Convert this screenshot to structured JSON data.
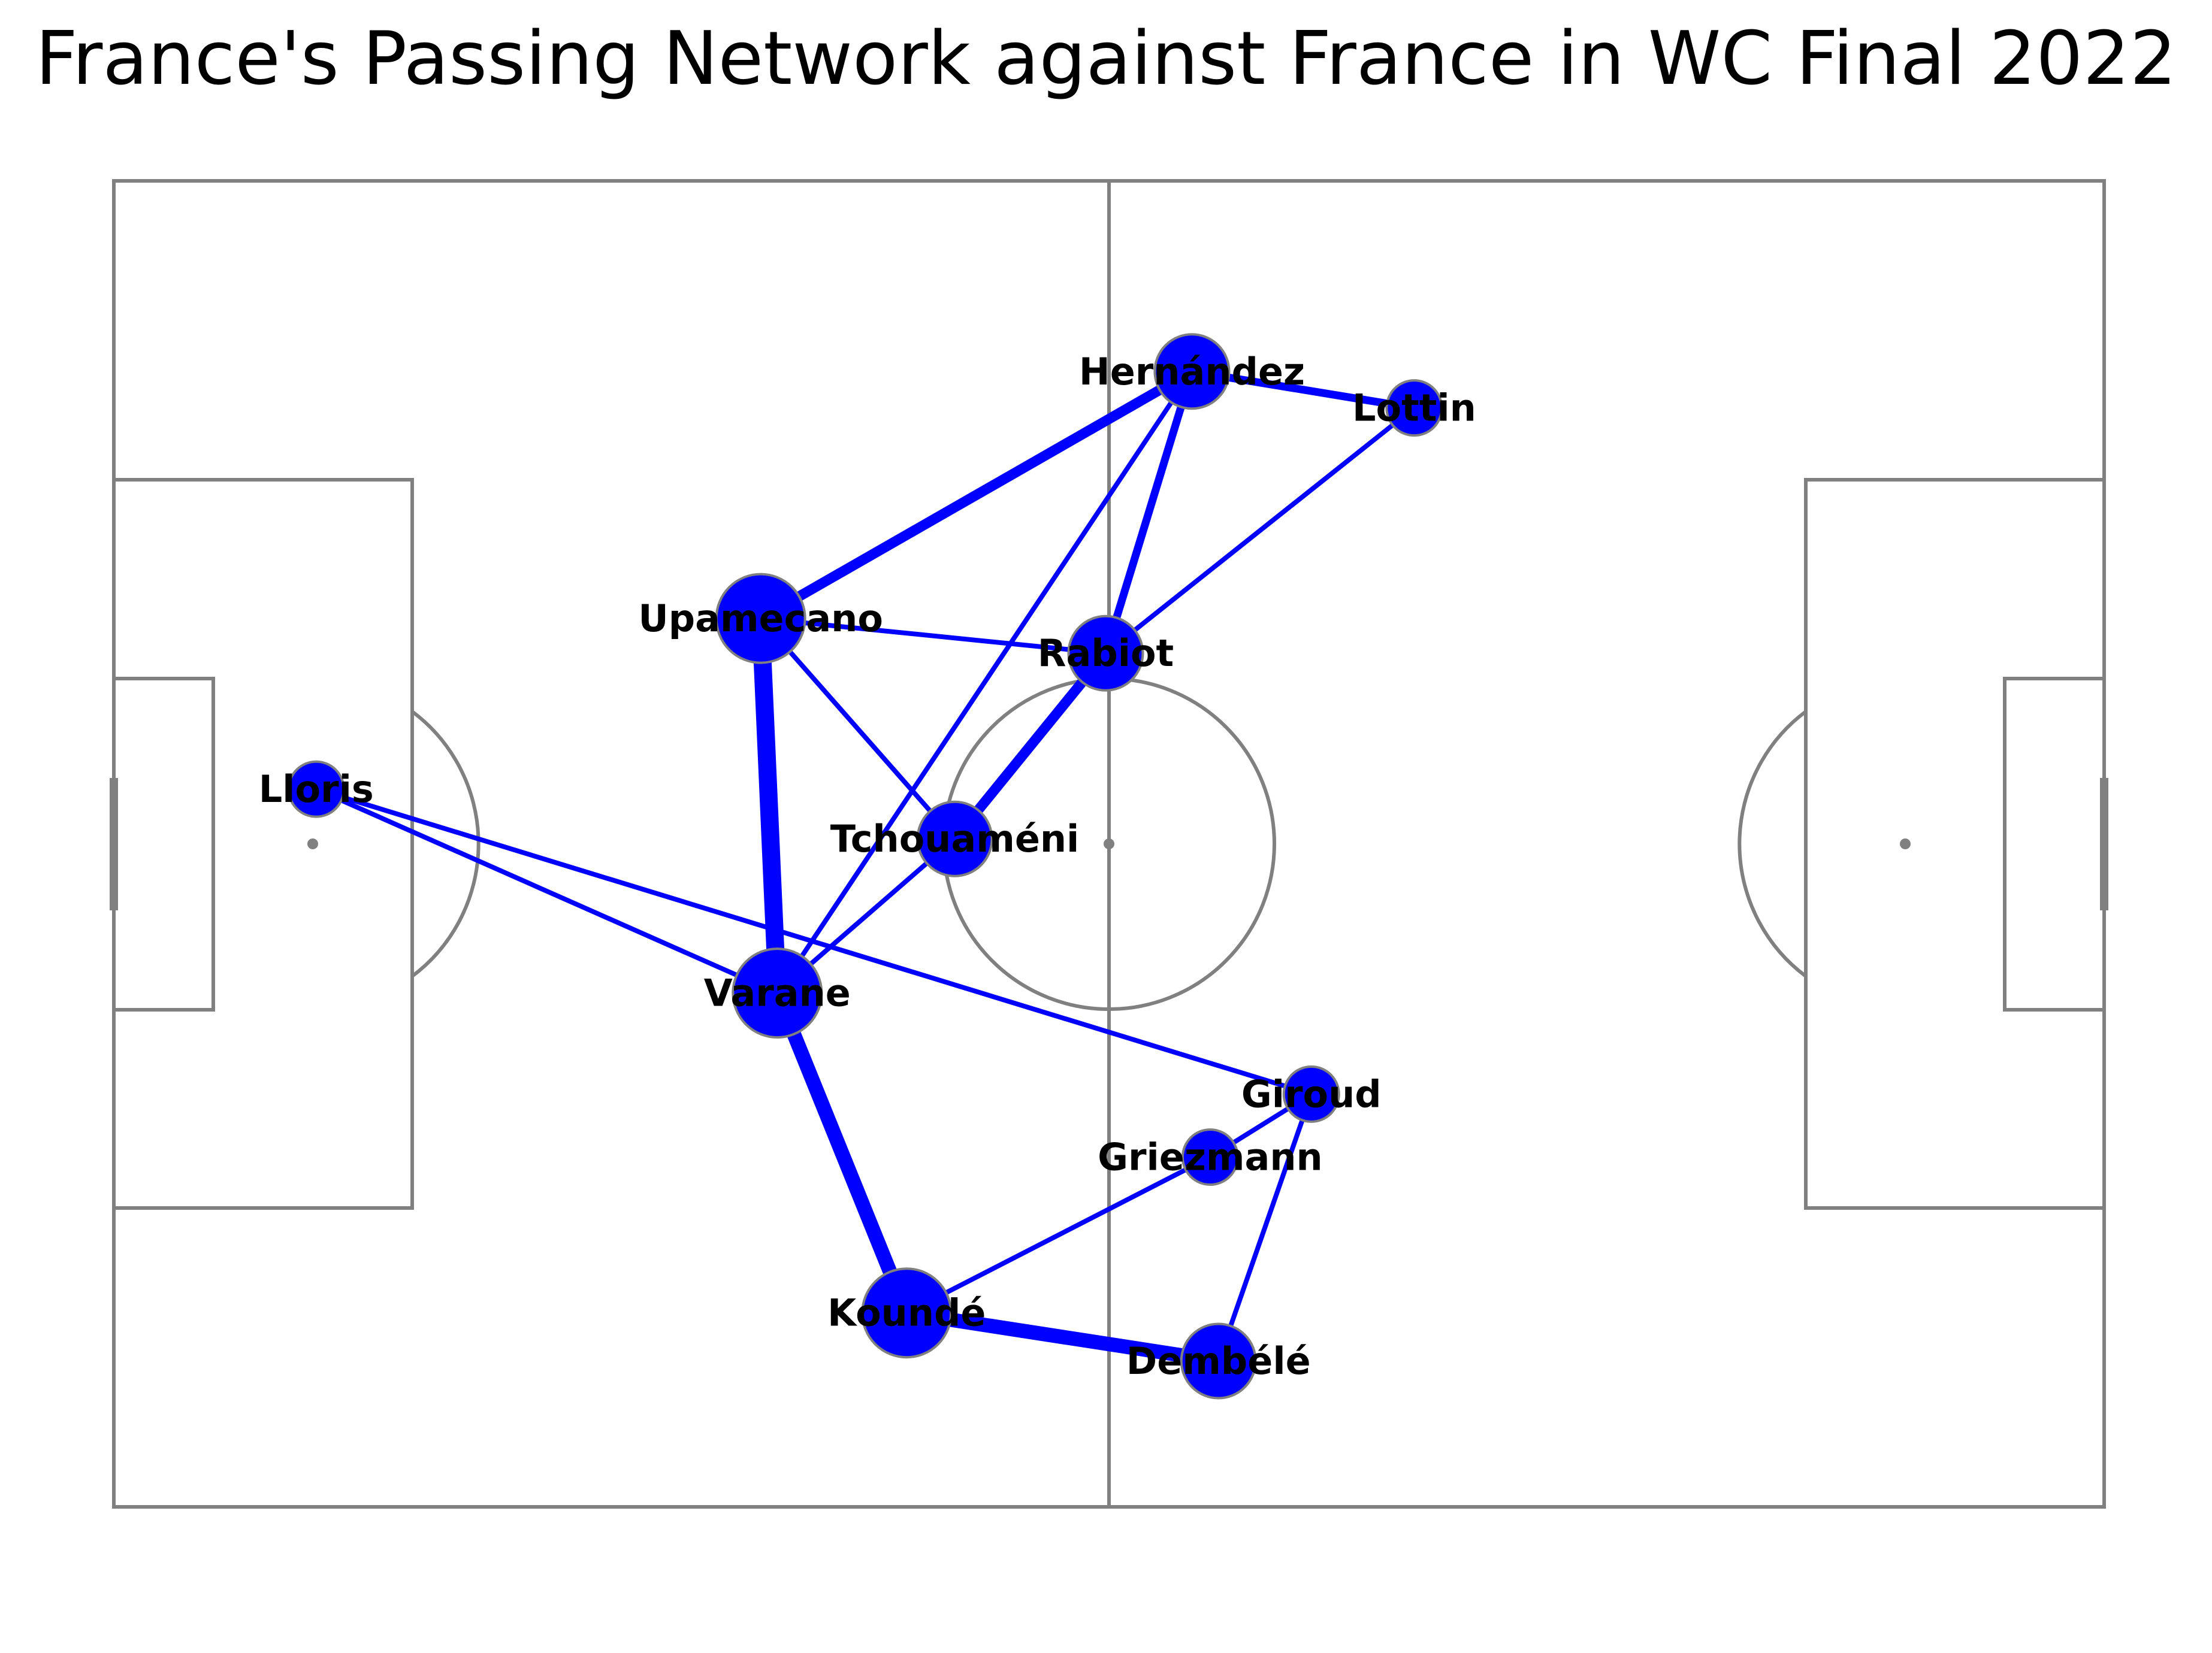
{
  "title": "France's Passing Network against France in WC Final 2022",
  "colors": {
    "background": "#ffffff",
    "pitch_lines": "#808080",
    "network": "#0000ff",
    "label": "#000000"
  },
  "diagram": {
    "type": "passing-network",
    "pitch": {
      "length": 120,
      "width": 80,
      "orientation": "horizontal"
    },
    "nodes": [
      {
        "id": "lloris",
        "label": "Lloris",
        "x": 12.2,
        "y": 36.7,
        "size": 1
      },
      {
        "id": "upamecano",
        "label": "Upamecano",
        "x": 39.0,
        "y": 26.4,
        "size": 3
      },
      {
        "id": "varane",
        "label": "Varane",
        "x": 40.0,
        "y": 49.0,
        "size": 3
      },
      {
        "id": "tchouameni",
        "label": "Tchouaméni",
        "x": 50.7,
        "y": 39.7,
        "size": 2
      },
      {
        "id": "rabiot",
        "label": "Rabiot",
        "x": 59.8,
        "y": 28.5,
        "size": 2
      },
      {
        "id": "hernandez",
        "label": "Hernández",
        "x": 65.0,
        "y": 11.5,
        "size": 2
      },
      {
        "id": "lottin",
        "label": "Lottin",
        "x": 78.4,
        "y": 13.7,
        "size": 1
      },
      {
        "id": "kounde",
        "label": "Koundé",
        "x": 47.8,
        "y": 68.3,
        "size": 3
      },
      {
        "id": "dembele",
        "label": "Dembélé",
        "x": 66.6,
        "y": 71.2,
        "size": 2
      },
      {
        "id": "griezmann",
        "label": "Griezmann",
        "x": 66.1,
        "y": 58.9,
        "size": 1
      },
      {
        "id": "giroud",
        "label": "Giroud",
        "x": 72.2,
        "y": 55.1,
        "size": 1
      }
    ],
    "edges": [
      {
        "source": "upamecano",
        "target": "varane",
        "weight": 5
      },
      {
        "source": "varane",
        "target": "kounde",
        "weight": 4
      },
      {
        "source": "kounde",
        "target": "dembele",
        "weight": 4
      },
      {
        "source": "upamecano",
        "target": "hernandez",
        "weight": 3
      },
      {
        "source": "tchouameni",
        "target": "rabiot",
        "weight": 3
      },
      {
        "source": "hernandez",
        "target": "lottin",
        "weight": 2
      },
      {
        "source": "hernandez",
        "target": "rabiot",
        "weight": 2
      },
      {
        "source": "upamecano",
        "target": "rabiot",
        "weight": 1
      },
      {
        "source": "upamecano",
        "target": "tchouameni",
        "weight": 1
      },
      {
        "source": "varane",
        "target": "hernandez",
        "weight": 1
      },
      {
        "source": "varane",
        "target": "tchouameni",
        "weight": 1
      },
      {
        "source": "lloris",
        "target": "varane",
        "weight": 1
      },
      {
        "source": "lloris",
        "target": "giroud",
        "weight": 1
      },
      {
        "source": "rabiot",
        "target": "lottin",
        "weight": 1
      },
      {
        "source": "kounde",
        "target": "griezmann",
        "weight": 1
      },
      {
        "source": "griezmann",
        "target": "giroud",
        "weight": 1
      },
      {
        "source": "giroud",
        "target": "dembele",
        "weight": 1
      }
    ]
  }
}
